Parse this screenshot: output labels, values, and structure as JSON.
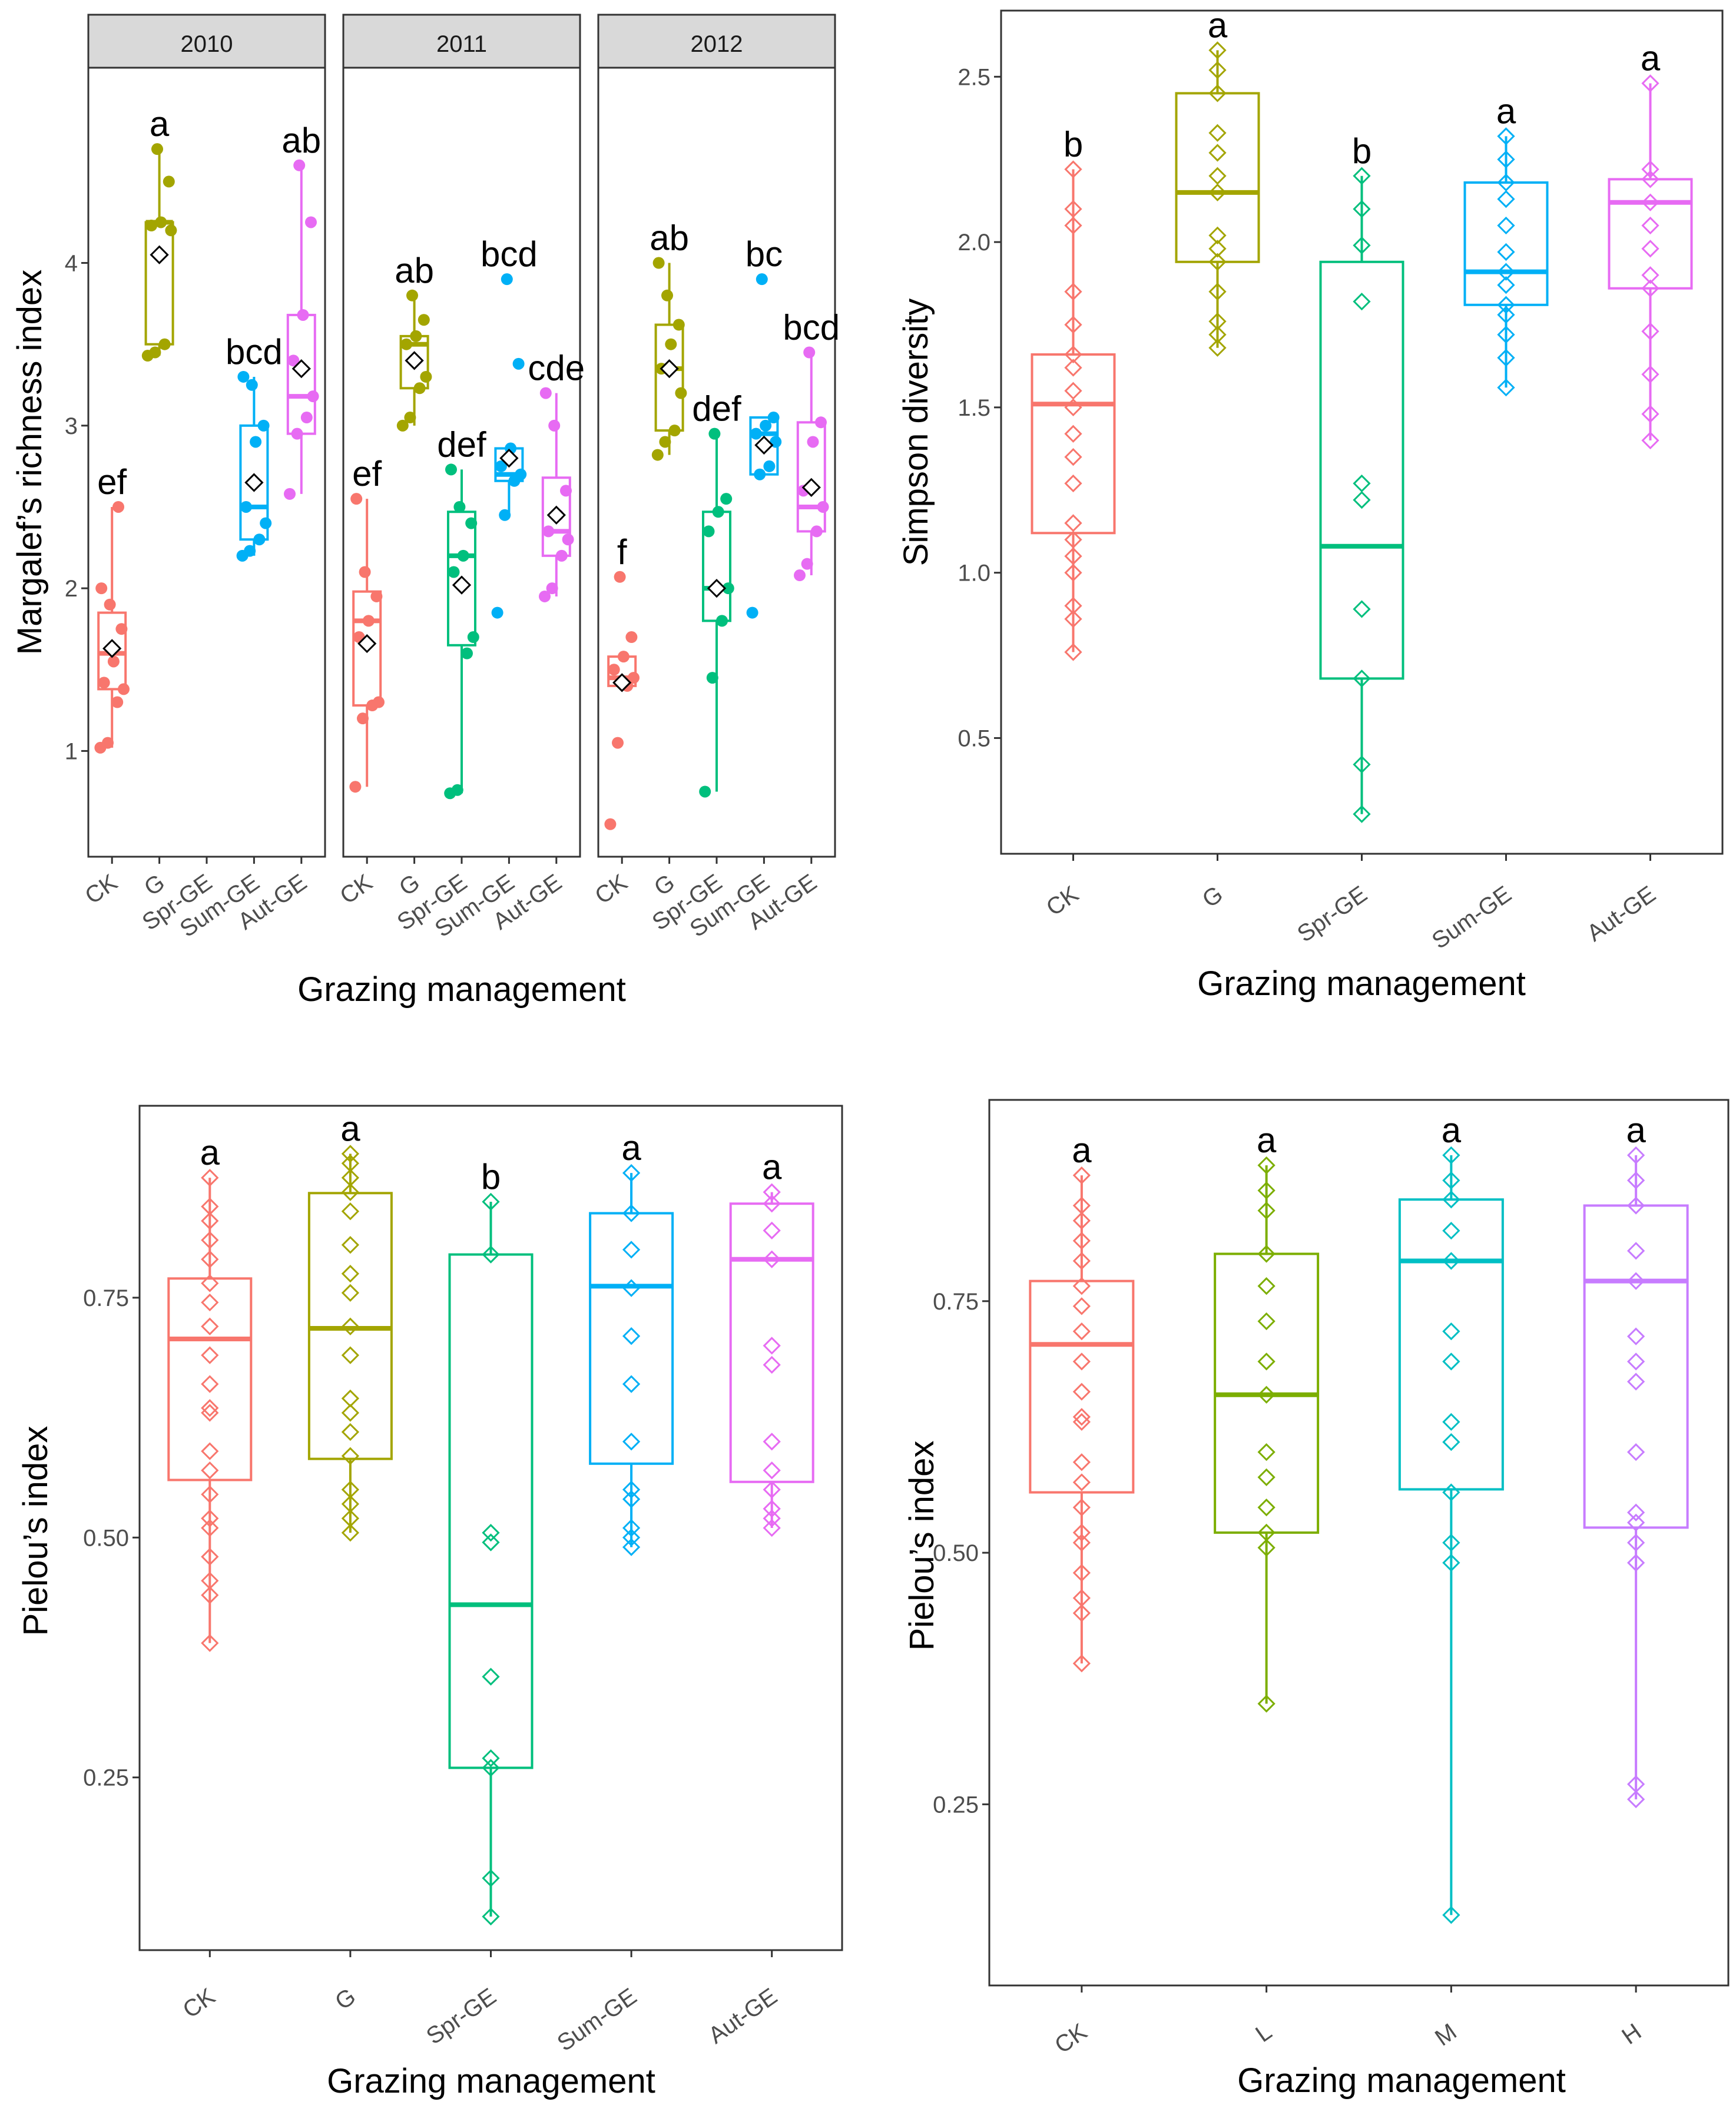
{
  "colors": {
    "CK": "#F8766D",
    "G": "#A3A500",
    "Spr-GE": "#00BF7D",
    "Sum-GE": "#00B0F6",
    "Aut-GE": "#E76BF3",
    "L": "#7CAE00",
    "M": "#00BFC4",
    "H": "#C77CFF",
    "strip_fill": "#D9D9D9",
    "axis": "#333333"
  },
  "chart_data": [
    {
      "id": "margalef",
      "type": "box",
      "point_style": "dot",
      "xlabel": "Grazing management",
      "ylabel": "Margalef’s richness index",
      "ylim": [
        0.35,
        5.2
      ],
      "yticks": [
        1,
        2,
        3,
        4
      ],
      "panels": [
        {
          "strip": "2010",
          "categories": [
            "CK",
            "G",
            "Spr-GE",
            "Sum-GE",
            "Aut-GE"
          ],
          "groups": [
            {
              "cat": "CK",
              "q1": 1.38,
              "med": 1.6,
              "q3": 1.85,
              "lo": 1.02,
              "hi": 2.5,
              "mean": 1.63,
              "label": "ef",
              "points": [
                1.02,
                1.05,
                1.3,
                1.38,
                1.42,
                1.55,
                1.75,
                1.9,
                2.0,
                2.5
              ]
            },
            {
              "cat": "G",
              "q1": 3.5,
              "med": 4.25,
              "q3": 4.25,
              "lo": 3.43,
              "hi": 4.7,
              "mean": 4.05,
              "label": "a",
              "points": [
                3.43,
                3.45,
                3.5,
                4.2,
                4.23,
                4.25,
                4.5,
                4.7
              ]
            },
            {
              "cat": "Sum-GE",
              "q1": 2.3,
              "med": 2.5,
              "q3": 3.0,
              "lo": 2.2,
              "hi": 3.3,
              "mean": 2.65,
              "label": "bcd",
              "points": [
                2.2,
                2.23,
                2.3,
                2.4,
                2.5,
                2.9,
                3.0,
                3.25,
                3.3
              ]
            },
            {
              "cat": "Aut-GE",
              "q1": 2.95,
              "med": 3.18,
              "q3": 3.68,
              "lo": 2.58,
              "hi": 4.6,
              "mean": 3.35,
              "label": "ab",
              "points": [
                2.58,
                2.95,
                3.05,
                3.18,
                3.4,
                3.68,
                4.25,
                4.6
              ]
            }
          ]
        },
        {
          "strip": "2011",
          "categories": [
            "CK",
            "G",
            "Spr-GE",
            "Sum-GE",
            "Aut-GE"
          ],
          "groups": [
            {
              "cat": "CK",
              "q1": 1.28,
              "med": 1.8,
              "q3": 1.98,
              "lo": 0.78,
              "hi": 2.55,
              "mean": 1.66,
              "label": "ef",
              "points": [
                0.78,
                1.2,
                1.28,
                1.3,
                1.7,
                1.8,
                1.95,
                2.1,
                2.55
              ]
            },
            {
              "cat": "G",
              "q1": 3.23,
              "med": 3.5,
              "q3": 3.55,
              "lo": 3.0,
              "hi": 3.8,
              "mean": 3.4,
              "label": "ab",
              "points": [
                3.0,
                3.05,
                3.23,
                3.3,
                3.5,
                3.55,
                3.65,
                3.8
              ]
            },
            {
              "cat": "Spr-GE",
              "q1": 1.65,
              "med": 2.2,
              "q3": 2.47,
              "lo": 0.74,
              "hi": 2.73,
              "mean": 2.02,
              "label": "def",
              "points": [
                0.74,
                0.76,
                1.6,
                1.7,
                2.1,
                2.2,
                2.4,
                2.5,
                2.73
              ]
            },
            {
              "cat": "Sum-GE",
              "q1": 2.66,
              "med": 2.7,
              "q3": 2.86,
              "lo": 2.45,
              "hi": 2.86,
              "mean": 2.8,
              "label": "bcd",
              "points": [
                1.85,
                2.45,
                2.66,
                2.7,
                2.75,
                2.86,
                3.38,
                3.9
              ]
            },
            {
              "cat": "Aut-GE",
              "q1": 2.2,
              "med": 2.35,
              "q3": 2.68,
              "lo": 1.95,
              "hi": 3.2,
              "mean": 2.45,
              "label": "cde",
              "points": [
                1.95,
                2.0,
                2.2,
                2.3,
                2.35,
                2.45,
                2.6,
                3.0,
                3.2
              ]
            }
          ]
        },
        {
          "strip": "2012",
          "categories": [
            "CK",
            "G",
            "Spr-GE",
            "Sum-GE",
            "Aut-GE"
          ],
          "groups": [
            {
              "cat": "CK",
              "q1": 1.4,
              "med": 1.45,
              "q3": 1.58,
              "lo": 1.4,
              "hi": 1.58,
              "mean": 1.42,
              "label": "f",
              "points": [
                0.55,
                1.05,
                1.4,
                1.45,
                1.5,
                1.58,
                1.7,
                2.07
              ]
            },
            {
              "cat": "G",
              "q1": 2.97,
              "med": 3.35,
              "q3": 3.62,
              "lo": 2.82,
              "hi": 4.0,
              "mean": 3.35,
              "label": "ab",
              "points": [
                2.82,
                2.9,
                2.97,
                3.2,
                3.35,
                3.5,
                3.62,
                3.8,
                4.0
              ]
            },
            {
              "cat": "Spr-GE",
              "q1": 1.8,
              "med": 2.0,
              "q3": 2.47,
              "lo": 0.75,
              "hi": 2.95,
              "mean": 2.0,
              "label": "def",
              "points": [
                0.75,
                1.45,
                1.8,
                2.0,
                2.35,
                2.47,
                2.55,
                2.95
              ]
            },
            {
              "cat": "Sum-GE",
              "q1": 2.7,
              "med": 2.95,
              "q3": 3.05,
              "lo": 2.7,
              "hi": 3.05,
              "mean": 2.88,
              "label": "bc",
              "points": [
                1.85,
                2.7,
                2.75,
                2.9,
                2.95,
                3.0,
                3.05,
                3.9
              ]
            },
            {
              "cat": "Aut-GE",
              "q1": 2.35,
              "med": 2.5,
              "q3": 3.02,
              "lo": 2.08,
              "hi": 3.45,
              "mean": 2.62,
              "label": "bcd",
              "points": [
                2.08,
                2.15,
                2.35,
                2.5,
                2.6,
                2.9,
                3.02,
                3.45
              ]
            }
          ]
        }
      ]
    },
    {
      "id": "simpson",
      "type": "box",
      "point_style": "diamond",
      "xlabel": "Grazing management",
      "ylabel": "Simpson diversity",
      "ylim": [
        0.15,
        2.7
      ],
      "yticks": [
        0.5,
        1.0,
        1.5,
        2.0,
        2.5
      ],
      "categories": [
        "CK",
        "G",
        "Spr-GE",
        "Sum-GE",
        "Aut-GE"
      ],
      "groups": [
        {
          "cat": "CK",
          "q1": 1.12,
          "med": 1.51,
          "q3": 1.66,
          "lo": 0.76,
          "hi": 2.22,
          "label": "b",
          "points": [
            0.76,
            0.86,
            0.9,
            1.0,
            1.05,
            1.1,
            1.15,
            1.27,
            1.35,
            1.42,
            1.5,
            1.55,
            1.62,
            1.66,
            1.75,
            1.85,
            2.05,
            2.1,
            2.22
          ]
        },
        {
          "cat": "G",
          "q1": 1.94,
          "med": 2.15,
          "q3": 2.45,
          "lo": 1.68,
          "hi": 2.58,
          "label": "a",
          "points": [
            1.68,
            1.72,
            1.76,
            1.85,
            1.94,
            1.98,
            2.02,
            2.15,
            2.2,
            2.27,
            2.33,
            2.45,
            2.52,
            2.58
          ]
        },
        {
          "cat": "Spr-GE",
          "q1": 0.68,
          "med": 1.08,
          "q3": 1.94,
          "lo": 0.27,
          "hi": 2.2,
          "label": "b",
          "points": [
            0.27,
            0.42,
            0.68,
            0.89,
            1.22,
            1.27,
            1.82,
            1.99,
            2.1,
            2.2
          ]
        },
        {
          "cat": "Sum-GE",
          "q1": 1.81,
          "med": 1.91,
          "q3": 2.18,
          "lo": 1.56,
          "hi": 2.32,
          "label": "a",
          "points": [
            1.56,
            1.65,
            1.72,
            1.78,
            1.81,
            1.87,
            1.91,
            1.97,
            2.05,
            2.13,
            2.18,
            2.25,
            2.32
          ]
        },
        {
          "cat": "Aut-GE",
          "q1": 1.86,
          "med": 2.12,
          "q3": 2.19,
          "lo": 1.4,
          "hi": 2.48,
          "label": "a",
          "points": [
            1.4,
            1.48,
            1.6,
            1.73,
            1.86,
            1.9,
            1.98,
            2.05,
            2.12,
            2.19,
            2.22,
            2.48
          ]
        }
      ]
    },
    {
      "id": "pielou_season",
      "type": "box",
      "point_style": "diamond",
      "xlabel": "Grazing management",
      "ylabel": "Pielou’s index",
      "ylim": [
        0.07,
        0.95
      ],
      "yticks": [
        0.25,
        0.5,
        0.75
      ],
      "categories": [
        "CK",
        "G",
        "Spr-GE",
        "Sum-GE",
        "Aut-GE"
      ],
      "groups": [
        {
          "cat": "CK",
          "q1": 0.56,
          "med": 0.707,
          "q3": 0.77,
          "lo": 0.39,
          "hi": 0.875,
          "label": "a",
          "points": [
            0.39,
            0.44,
            0.455,
            0.48,
            0.51,
            0.52,
            0.545,
            0.57,
            0.59,
            0.63,
            0.635,
            0.66,
            0.69,
            0.72,
            0.745,
            0.765,
            0.79,
            0.81,
            0.83,
            0.845,
            0.875
          ]
        },
        {
          "cat": "G",
          "q1": 0.582,
          "med": 0.718,
          "q3": 0.859,
          "lo": 0.505,
          "hi": 0.9,
          "label": "a",
          "points": [
            0.505,
            0.52,
            0.535,
            0.55,
            0.585,
            0.61,
            0.63,
            0.645,
            0.69,
            0.72,
            0.755,
            0.775,
            0.805,
            0.84,
            0.86,
            0.875,
            0.89,
            0.9
          ]
        },
        {
          "cat": "Spr-GE",
          "q1": 0.26,
          "med": 0.43,
          "q3": 0.795,
          "lo": 0.105,
          "hi": 0.85,
          "label": "b",
          "points": [
            0.105,
            0.145,
            0.26,
            0.27,
            0.355,
            0.495,
            0.505,
            0.795,
            0.85
          ]
        },
        {
          "cat": "Sum-GE",
          "q1": 0.577,
          "med": 0.762,
          "q3": 0.838,
          "lo": 0.49,
          "hi": 0.88,
          "label": "a",
          "points": [
            0.49,
            0.5,
            0.51,
            0.54,
            0.55,
            0.6,
            0.66,
            0.71,
            0.76,
            0.8,
            0.838,
            0.88
          ]
        },
        {
          "cat": "Aut-GE",
          "q1": 0.558,
          "med": 0.79,
          "q3": 0.848,
          "lo": 0.51,
          "hi": 0.86,
          "label": "a",
          "points": [
            0.51,
            0.52,
            0.53,
            0.55,
            0.57,
            0.6,
            0.68,
            0.7,
            0.79,
            0.82,
            0.848,
            0.86
          ]
        }
      ]
    },
    {
      "id": "pielou_intensity",
      "type": "box",
      "point_style": "diamond",
      "xlabel": "Grazing management",
      "ylabel": "Pielou’s index",
      "ylim": [
        0.07,
        0.95
      ],
      "yticks": [
        0.25,
        0.5,
        0.75
      ],
      "categories": [
        "CK",
        "L",
        "M",
        "H"
      ],
      "groups": [
        {
          "cat": "CK",
          "q1": 0.56,
          "med": 0.707,
          "q3": 0.77,
          "lo": 0.39,
          "hi": 0.875,
          "label": "a",
          "points": [
            0.39,
            0.44,
            0.455,
            0.48,
            0.51,
            0.52,
            0.545,
            0.57,
            0.59,
            0.63,
            0.635,
            0.66,
            0.69,
            0.72,
            0.745,
            0.765,
            0.79,
            0.81,
            0.83,
            0.845,
            0.875
          ]
        },
        {
          "cat": "L",
          "q1": 0.52,
          "med": 0.657,
          "q3": 0.797,
          "lo": 0.35,
          "hi": 0.885,
          "label": "a",
          "points": [
            0.35,
            0.505,
            0.52,
            0.545,
            0.575,
            0.6,
            0.657,
            0.69,
            0.73,
            0.765,
            0.797,
            0.84,
            0.86,
            0.885
          ]
        },
        {
          "cat": "M",
          "q1": 0.563,
          "med": 0.79,
          "q3": 0.851,
          "lo": 0.14,
          "hi": 0.895,
          "label": "a",
          "points": [
            0.14,
            0.49,
            0.51,
            0.56,
            0.61,
            0.63,
            0.69,
            0.72,
            0.79,
            0.82,
            0.851,
            0.87,
            0.895
          ]
        },
        {
          "cat": "H",
          "q1": 0.525,
          "med": 0.77,
          "q3": 0.845,
          "lo": 0.255,
          "hi": 0.895,
          "label": "a",
          "points": [
            0.255,
            0.27,
            0.49,
            0.51,
            0.53,
            0.54,
            0.6,
            0.67,
            0.69,
            0.715,
            0.77,
            0.8,
            0.845,
            0.87,
            0.895
          ]
        }
      ]
    }
  ]
}
